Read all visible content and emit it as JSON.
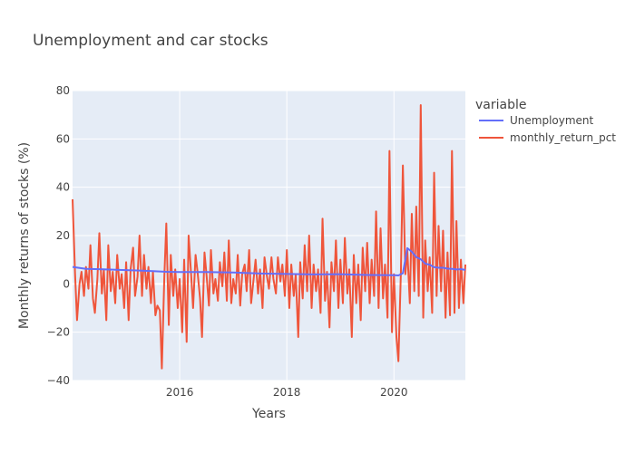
{
  "chart_data": {
    "type": "line",
    "title": "Unemployment and car stocks",
    "xlabel": "Years",
    "ylabel": "Monthly returns of stocks (%)",
    "xlim": [
      "2014-01",
      "2021-05"
    ],
    "ylim": [
      -40,
      80
    ],
    "x_ticks": [
      "2016",
      "2018",
      "2020"
    ],
    "y_ticks": [
      "−40",
      "−20",
      "0",
      "20",
      "40",
      "60",
      "80"
    ],
    "grid": true,
    "legend": {
      "title": "variable",
      "position": "right"
    },
    "series": [
      {
        "name": "Unemployment",
        "color": "#636efa",
        "points": [
          [
            "2014-01",
            7.0
          ],
          [
            "2014-04",
            6.2
          ],
          [
            "2014-07",
            6.1
          ],
          [
            "2014-10",
            5.9
          ],
          [
            "2015-01",
            5.7
          ],
          [
            "2015-04",
            5.5
          ],
          [
            "2015-07",
            5.3
          ],
          [
            "2015-10",
            5.0
          ],
          [
            "2016-01",
            4.9
          ],
          [
            "2016-07",
            4.9
          ],
          [
            "2017-01",
            4.7
          ],
          [
            "2017-07",
            4.3
          ],
          [
            "2018-01",
            4.1
          ],
          [
            "2018-07",
            3.9
          ],
          [
            "2019-01",
            4.0
          ],
          [
            "2019-07",
            3.7
          ],
          [
            "2020-01",
            3.6
          ],
          [
            "2020-02",
            3.5
          ],
          [
            "2020-03",
            4.4
          ],
          [
            "2020-04",
            14.8
          ],
          [
            "2020-05",
            13.3
          ],
          [
            "2020-06",
            11.1
          ],
          [
            "2020-07",
            10.2
          ],
          [
            "2020-08",
            8.4
          ],
          [
            "2020-09",
            7.9
          ],
          [
            "2020-10",
            6.9
          ],
          [
            "2020-11",
            6.7
          ],
          [
            "2020-12",
            6.7
          ],
          [
            "2021-01",
            6.3
          ],
          [
            "2021-02",
            6.2
          ],
          [
            "2021-03",
            6.0
          ],
          [
            "2021-04",
            6.1
          ],
          [
            "2021-05",
            5.8
          ]
        ]
      },
      {
        "name": "monthly_return_pct",
        "color": "#ef553b",
        "points": [
          [
            "2014-01",
            35
          ],
          [
            "2014-01-18",
            4
          ],
          [
            "2014-02",
            -15
          ],
          [
            "2014-02-18",
            0
          ],
          [
            "2014-03",
            5
          ],
          [
            "2014-03-18",
            -5
          ],
          [
            "2014-04",
            7
          ],
          [
            "2014-04-18",
            -2
          ],
          [
            "2014-05",
            16
          ],
          [
            "2014-05-18",
            -6
          ],
          [
            "2014-06",
            -12
          ],
          [
            "2014-06-18",
            2
          ],
          [
            "2014-07",
            21
          ],
          [
            "2014-07-18",
            -4
          ],
          [
            "2014-08",
            6
          ],
          [
            "2014-08-18",
            -15
          ],
          [
            "2014-09",
            16
          ],
          [
            "2014-09-18",
            -3
          ],
          [
            "2014-10",
            5
          ],
          [
            "2014-10-18",
            -8
          ],
          [
            "2014-11",
            12
          ],
          [
            "2014-11-18",
            -2
          ],
          [
            "2014-12",
            4
          ],
          [
            "2014-12-18",
            -10
          ],
          [
            "2015-01",
            9
          ],
          [
            "2015-01-18",
            -15
          ],
          [
            "2015-02",
            6
          ],
          [
            "2015-02-18",
            15
          ],
          [
            "2015-03",
            -5
          ],
          [
            "2015-03-18",
            3
          ],
          [
            "2015-04",
            20
          ],
          [
            "2015-04-18",
            -5
          ],
          [
            "2015-05",
            12
          ],
          [
            "2015-05-18",
            -2
          ],
          [
            "2015-06",
            7
          ],
          [
            "2015-06-18",
            -8
          ],
          [
            "2015-07",
            5
          ],
          [
            "2015-07-18",
            -13
          ],
          [
            "2015-08",
            -9
          ],
          [
            "2015-08-18",
            -11
          ],
          [
            "2015-09",
            -35
          ],
          [
            "2015-09-18",
            3
          ],
          [
            "2015-10",
            25
          ],
          [
            "2015-10-18",
            -17
          ],
          [
            "2015-11",
            12
          ],
          [
            "2015-11-18",
            -5
          ],
          [
            "2015-12",
            6
          ],
          [
            "2015-12-18",
            -10
          ],
          [
            "2016-01",
            2
          ],
          [
            "2016-01-18",
            -20
          ],
          [
            "2016-02",
            10
          ],
          [
            "2016-02-18",
            -24
          ],
          [
            "2016-03",
            20
          ],
          [
            "2016-03-18",
            4
          ],
          [
            "2016-04",
            -10
          ],
          [
            "2016-04-18",
            12
          ],
          [
            "2016-05",
            5
          ],
          [
            "2016-05-18",
            -6
          ],
          [
            "2016-06",
            -22
          ],
          [
            "2016-06-18",
            13
          ],
          [
            "2016-07",
            4
          ],
          [
            "2016-07-18",
            -9
          ],
          [
            "2016-08",
            14
          ],
          [
            "2016-08-18",
            -4
          ],
          [
            "2016-09",
            2
          ],
          [
            "2016-09-18",
            -7
          ],
          [
            "2016-10",
            9
          ],
          [
            "2016-10-18",
            -1
          ],
          [
            "2016-11",
            13
          ],
          [
            "2016-11-18",
            -7
          ],
          [
            "2016-12",
            18
          ],
          [
            "2016-12-18",
            -8
          ],
          [
            "2017-01",
            2
          ],
          [
            "2017-01-18",
            -4
          ],
          [
            "2017-02",
            12
          ],
          [
            "2017-02-18",
            -9
          ],
          [
            "2017-03",
            4
          ],
          [
            "2017-03-18",
            8
          ],
          [
            "2017-04",
            -3
          ],
          [
            "2017-04-18",
            14
          ],
          [
            "2017-05",
            -8
          ],
          [
            "2017-05-18",
            2
          ],
          [
            "2017-06",
            10
          ],
          [
            "2017-06-18",
            -4
          ],
          [
            "2017-07",
            6
          ],
          [
            "2017-07-18",
            -10
          ],
          [
            "2017-08",
            11
          ],
          [
            "2017-08-18",
            3
          ],
          [
            "2017-09",
            -2
          ],
          [
            "2017-09-18",
            11
          ],
          [
            "2017-10",
            2
          ],
          [
            "2017-10-18",
            -4
          ],
          [
            "2017-11",
            11
          ],
          [
            "2017-11-18",
            1
          ],
          [
            "2017-12",
            8
          ],
          [
            "2017-12-18",
            -5
          ],
          [
            "2018-01",
            14
          ],
          [
            "2018-01-18",
            -10
          ],
          [
            "2018-02",
            8
          ],
          [
            "2018-02-18",
            -5
          ],
          [
            "2018-03",
            4
          ],
          [
            "2018-03-18",
            -22
          ],
          [
            "2018-04",
            9
          ],
          [
            "2018-04-18",
            -6
          ],
          [
            "2018-05",
            16
          ],
          [
            "2018-05-18",
            -3
          ],
          [
            "2018-06",
            20
          ],
          [
            "2018-06-18",
            -10
          ],
          [
            "2018-07",
            8
          ],
          [
            "2018-07-18",
            -3
          ],
          [
            "2018-08",
            6
          ],
          [
            "2018-08-18",
            -12
          ],
          [
            "2018-09",
            27
          ],
          [
            "2018-09-18",
            -7
          ],
          [
            "2018-10",
            5
          ],
          [
            "2018-10-18",
            -18
          ],
          [
            "2018-11",
            9
          ],
          [
            "2018-11-18",
            -3
          ],
          [
            "2018-12",
            18
          ],
          [
            "2018-12-18",
            -10
          ],
          [
            "2019-01",
            10
          ],
          [
            "2019-01-18",
            -8
          ],
          [
            "2019-02",
            19
          ],
          [
            "2019-02-18",
            -4
          ],
          [
            "2019-03",
            6
          ],
          [
            "2019-03-18",
            -22
          ],
          [
            "2019-04",
            12
          ],
          [
            "2019-04-18",
            -8
          ],
          [
            "2019-05",
            8
          ],
          [
            "2019-05-18",
            -15
          ],
          [
            "2019-06",
            15
          ],
          [
            "2019-06-18",
            -3
          ],
          [
            "2019-07",
            17
          ],
          [
            "2019-07-18",
            -8
          ],
          [
            "2019-08",
            10
          ],
          [
            "2019-08-18",
            -5
          ],
          [
            "2019-09",
            30
          ],
          [
            "2019-09-18",
            -10
          ],
          [
            "2019-10",
            23
          ],
          [
            "2019-10-18",
            -6
          ],
          [
            "2019-11",
            8
          ],
          [
            "2019-11-18",
            -14
          ],
          [
            "2019-12",
            55
          ],
          [
            "2019-12-18",
            -20
          ],
          [
            "2020-01",
            4
          ],
          [
            "2020-01-18",
            -22
          ],
          [
            "2020-02",
            -32
          ],
          [
            "2020-02-18",
            5
          ],
          [
            "2020-03",
            49
          ],
          [
            "2020-03-18",
            4
          ],
          [
            "2020-04",
            14
          ],
          [
            "2020-04-18",
            -8
          ],
          [
            "2020-05",
            29
          ],
          [
            "2020-05-18",
            -3
          ],
          [
            "2020-06",
            32
          ],
          [
            "2020-06-18",
            -5
          ],
          [
            "2020-07",
            74
          ],
          [
            "2020-07-18",
            -14
          ],
          [
            "2020-08",
            18
          ],
          [
            "2020-08-18",
            -3
          ],
          [
            "2020-09",
            11
          ],
          [
            "2020-09-18",
            -12
          ],
          [
            "2020-10",
            46
          ],
          [
            "2020-10-18",
            -5
          ],
          [
            "2020-11",
            24
          ],
          [
            "2020-11-18",
            -3
          ],
          [
            "2020-12",
            22
          ],
          [
            "2020-12-18",
            -14
          ],
          [
            "2021-01",
            13
          ],
          [
            "2021-01-18",
            -13
          ],
          [
            "2021-02",
            55
          ],
          [
            "2021-02-18",
            -12
          ],
          [
            "2021-03",
            26
          ],
          [
            "2021-03-18",
            -10
          ],
          [
            "2021-04",
            10
          ],
          [
            "2021-04-18",
            -8
          ],
          [
            "2021-05",
            8
          ]
        ]
      }
    ]
  }
}
